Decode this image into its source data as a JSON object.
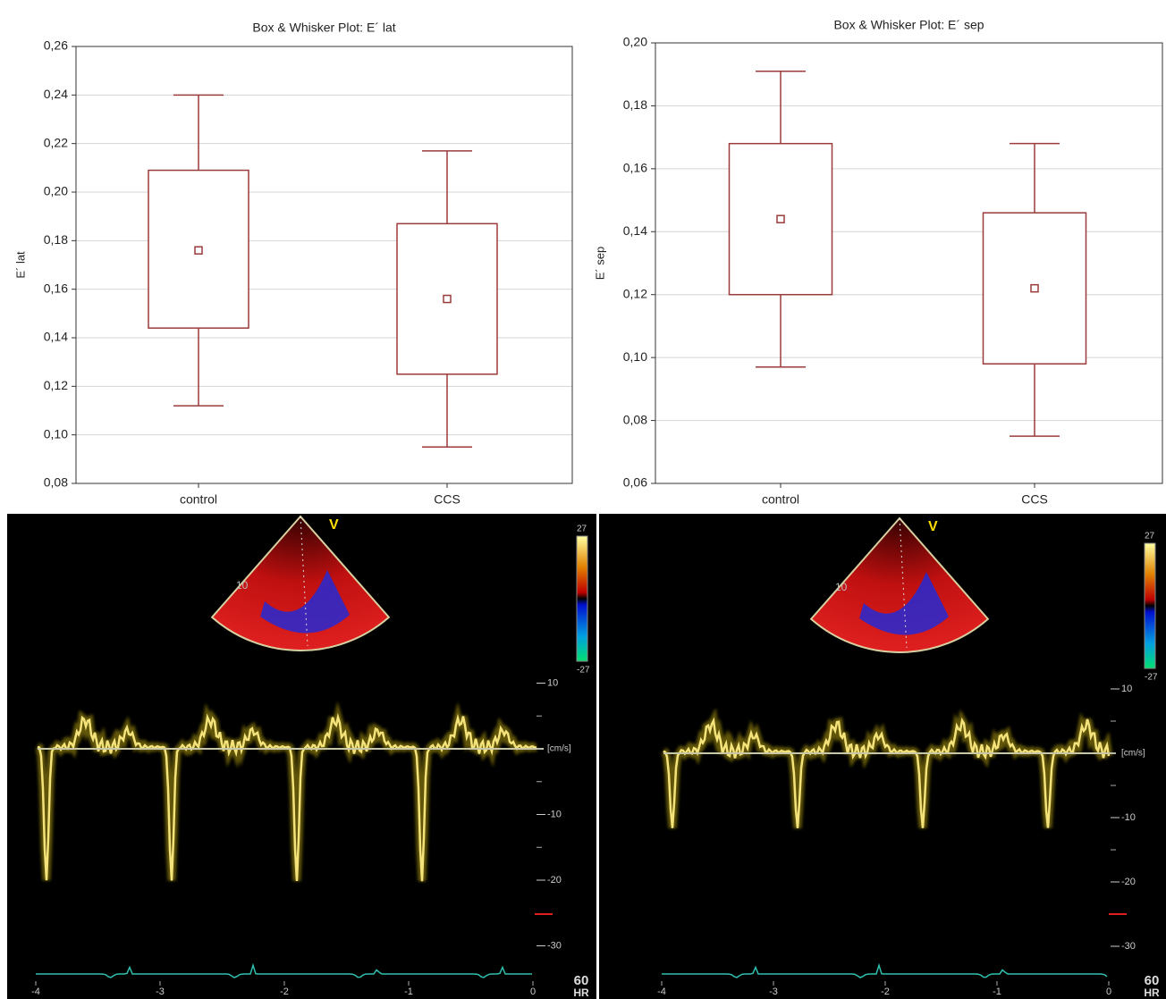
{
  "chart_data": [
    {
      "type": "box",
      "title": "Box & Whisker Plot: E´ lat",
      "y_label": "E´ lat",
      "categories": [
        "control",
        "CCS"
      ],
      "boxes": [
        {
          "whisker_high": 0.24,
          "box_high": 0.209,
          "center": 0.176,
          "box_low": 0.144,
          "whisker_low": 0.112
        },
        {
          "whisker_high": 0.217,
          "box_high": 0.187,
          "center": 0.156,
          "box_low": 0.125,
          "whisker_low": 0.095
        }
      ],
      "color": "#9b3b3b",
      "grid": true,
      "ylim": [
        0.08,
        0.26
      ],
      "yticks": [
        {
          "value": 0.08,
          "label": "0,08"
        },
        {
          "value": 0.1,
          "label": "0,10"
        },
        {
          "value": 0.12,
          "label": "0,12"
        },
        {
          "value": 0.14,
          "label": "0,14"
        },
        {
          "value": 0.16,
          "label": "0,16"
        },
        {
          "value": 0.18,
          "label": "0,18"
        },
        {
          "value": 0.2,
          "label": "0,20"
        },
        {
          "value": 0.22,
          "label": "0,22"
        },
        {
          "value": 0.24,
          "label": "0,24"
        },
        {
          "value": 0.26,
          "label": "0,26"
        }
      ]
    },
    {
      "type": "box",
      "title": "Box & Whisker Plot: E´ sep",
      "y_label": "E´ sep",
      "categories": [
        "control",
        "CCS"
      ],
      "boxes": [
        {
          "whisker_high": 0.191,
          "box_high": 0.168,
          "center": 0.144,
          "box_low": 0.12,
          "whisker_low": 0.097
        },
        {
          "whisker_high": 0.168,
          "box_high": 0.146,
          "center": 0.122,
          "box_low": 0.098,
          "whisker_low": 0.075
        }
      ],
      "color": "#9b3b3b",
      "grid": true,
      "ylim": [
        0.06,
        0.2
      ],
      "yticks": [
        {
          "value": 0.06,
          "label": "0,06"
        },
        {
          "value": 0.08,
          "label": "0,08"
        },
        {
          "value": 0.1,
          "label": "0,10"
        },
        {
          "value": 0.12,
          "label": "0,12"
        },
        {
          "value": 0.14,
          "label": "0,14"
        },
        {
          "value": 0.16,
          "label": "0,16"
        },
        {
          "value": 0.18,
          "label": "0,18"
        },
        {
          "value": 0.2,
          "label": "0,20"
        }
      ]
    }
  ],
  "doppler": [
    {
      "sector_labels": [
        "V",
        "10"
      ],
      "color_scale": [
        27,
        -27
      ],
      "velocity_ticks": [
        10,
        -10,
        -20,
        -30
      ],
      "unit": "[cm/s]",
      "time_ticks": [
        -4,
        -3,
        -2,
        -1,
        0
      ],
      "heart_rate": 60,
      "hr_label": "HR"
    },
    {
      "sector_labels": [
        "V",
        "10"
      ],
      "color_scale": [
        27,
        -27
      ],
      "velocity_ticks": [
        10,
        -10,
        -20,
        -30
      ],
      "unit": "[cm/s]",
      "time_ticks": [
        -4,
        -3,
        -2,
        -1,
        0
      ],
      "heart_rate": 60,
      "hr_label": "HR"
    }
  ]
}
